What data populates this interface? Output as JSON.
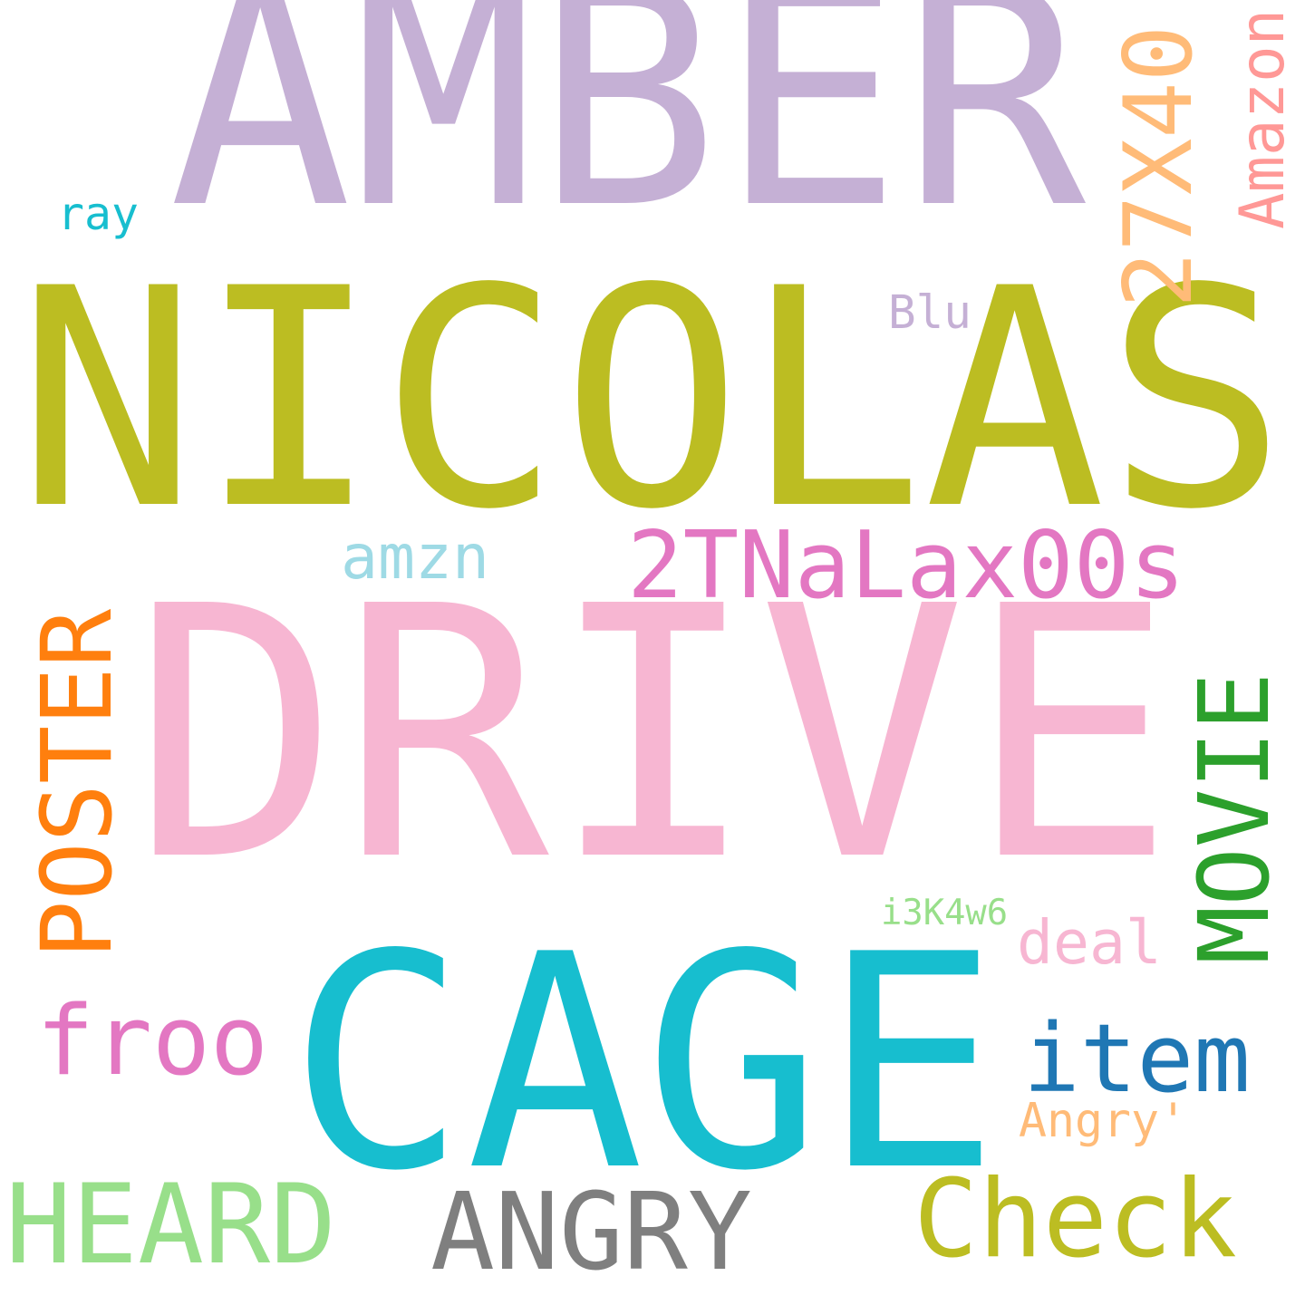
{
  "words": [
    {
      "id": "amber",
      "text": "AMBER",
      "color": "#c5b0d5",
      "vertical": false
    },
    {
      "id": "nicolas",
      "text": "NICOLAS",
      "color": "#bcbd22",
      "vertical": false
    },
    {
      "id": "drive",
      "text": "DRIVE",
      "color": "#f7b6d2",
      "vertical": false
    },
    {
      "id": "cage",
      "text": "CAGE",
      "color": "#17becf",
      "vertical": false
    },
    {
      "id": "27x40",
      "text": "27X40",
      "color": "#ffbb78",
      "vertical": true
    },
    {
      "id": "amazon",
      "text": "Amazon",
      "color": "#ff9896",
      "vertical": true
    },
    {
      "id": "ray",
      "text": "ray",
      "color": "#17becf",
      "vertical": false
    },
    {
      "id": "blu",
      "text": "Blu",
      "color": "#c5b0d5",
      "vertical": false
    },
    {
      "id": "amzn",
      "text": "amzn",
      "color": "#9edae5",
      "vertical": false
    },
    {
      "id": "2tnalax00s",
      "text": "2TNaLax00s",
      "color": "#e377c2",
      "vertical": false
    },
    {
      "id": "poster",
      "text": "POSTER",
      "color": "#ff7f0e",
      "vertical": true
    },
    {
      "id": "movie",
      "text": "MOVIE",
      "color": "#2ca02c",
      "vertical": true
    },
    {
      "id": "i3k4w6",
      "text": "i3K4w6",
      "color": "#98df8a",
      "vertical": false
    },
    {
      "id": "deal",
      "text": "deal",
      "color": "#f7b6d2",
      "vertical": false
    },
    {
      "id": "froo",
      "text": "froo",
      "color": "#e377c2",
      "vertical": false
    },
    {
      "id": "item",
      "text": "item",
      "color": "#1f77b4",
      "vertical": false
    },
    {
      "id": "angry-q",
      "text": "Angry'",
      "color": "#ffbb78",
      "vertical": false
    },
    {
      "id": "heard",
      "text": "HEARD",
      "color": "#98df8a",
      "vertical": false
    },
    {
      "id": "angry",
      "text": "ANGRY",
      "color": "#7f7f7f",
      "vertical": false
    },
    {
      "id": "check",
      "text": "Check",
      "color": "#bcbd22",
      "vertical": false
    }
  ]
}
